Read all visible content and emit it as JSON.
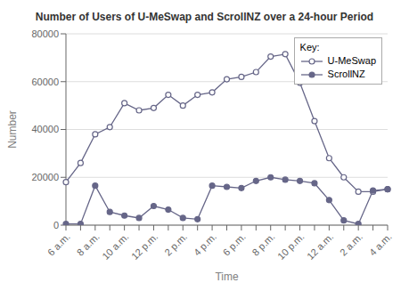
{
  "chart_data": {
    "type": "line",
    "title": "Number of Users of U-MeSwap and ScrollNZ over a 24-hour Period",
    "xlabel": "Time",
    "ylabel": "Number",
    "categories": [
      "6 a.m.",
      null,
      "8 a.m.",
      null,
      "10 a.m.",
      null,
      "12 p.m.",
      null,
      "2 p.m.",
      null,
      "4 p.m.",
      null,
      "6 p.m.",
      null,
      "8 p.m.",
      null,
      "10 p.m.",
      null,
      "12 a.m.",
      null,
      "2 a.m.",
      null,
      "4 a.m."
    ],
    "series": [
      {
        "name": "U-MeSwap",
        "color": "#666688",
        "marker": "open_circle",
        "values": [
          18000,
          26000,
          38000,
          41000,
          51000,
          48000,
          49000,
          54500,
          50000,
          54500,
          55500,
          61000,
          62000,
          64000,
          70500,
          71500,
          59500,
          43500,
          28000,
          20000,
          14000,
          14000,
          15000
        ]
      },
      {
        "name": "ScrollNZ",
        "color": "#666688",
        "marker": "circle",
        "values": [
          500,
          500,
          16500,
          5500,
          4000,
          3000,
          8000,
          6500,
          3000,
          2500,
          16500,
          16000,
          15500,
          18500,
          20000,
          19000,
          18500,
          17500,
          10500,
          2000,
          500,
          14500,
          15000
        ]
      }
    ],
    "ylim": [
      0,
      80000
    ],
    "yticks": [
      0,
      20000,
      40000,
      60000,
      80000
    ],
    "grid": "y",
    "legend": "upper right",
    "legend_title": "Key:"
  }
}
